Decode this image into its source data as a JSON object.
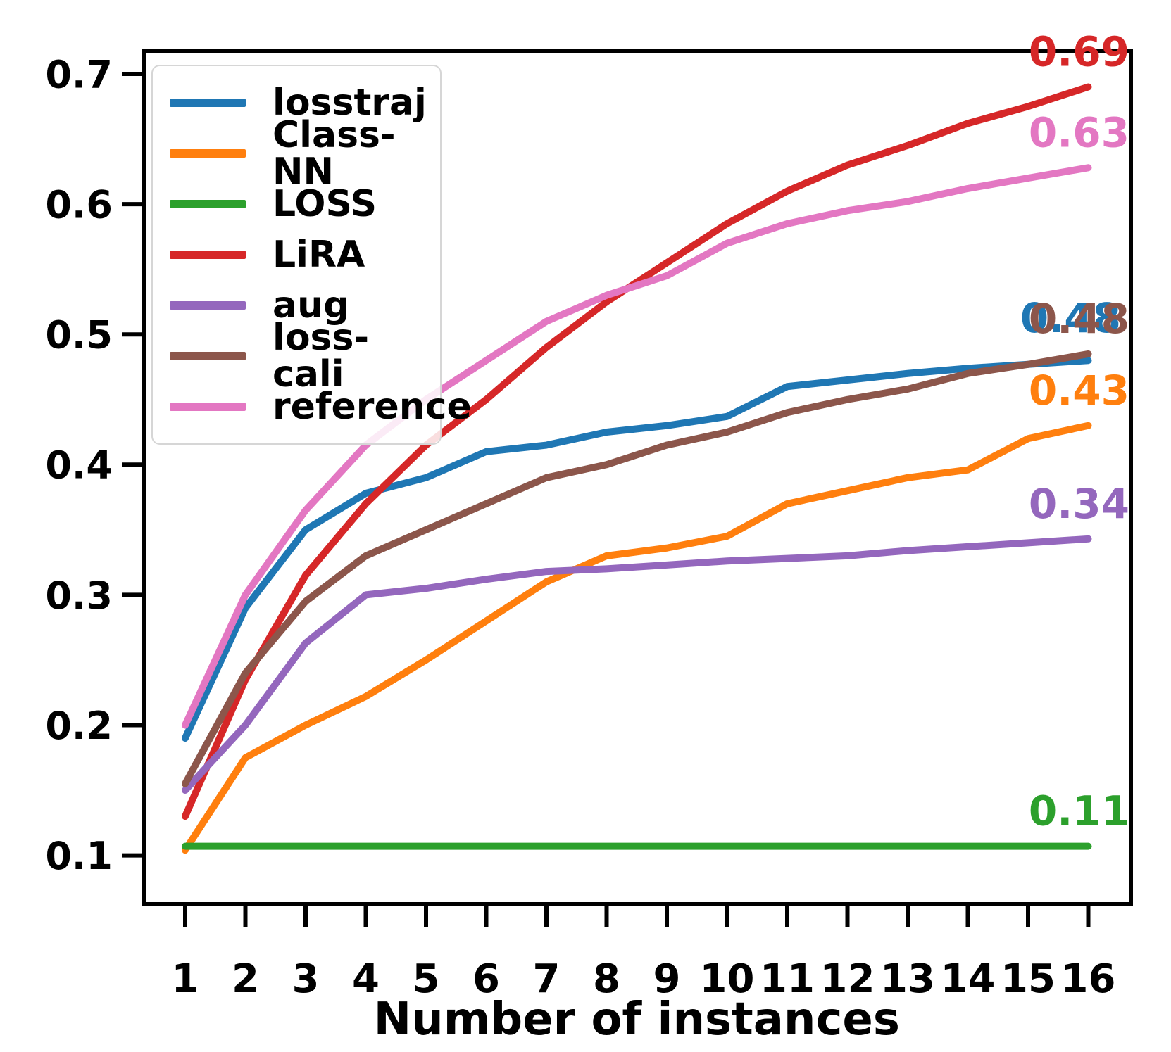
{
  "chart_data": {
    "type": "line",
    "title": "",
    "xlabel": "Number of instances",
    "ylabel": "",
    "x": [
      1,
      2,
      3,
      4,
      5,
      6,
      7,
      8,
      9,
      10,
      11,
      12,
      13,
      14,
      15,
      16
    ],
    "xtick_labels": [
      "1",
      "2",
      "3",
      "4",
      "5",
      "6",
      "7",
      "8",
      "9",
      "10",
      "11",
      "12",
      "13",
      "14",
      "15",
      "16"
    ],
    "yticks": [
      0.1,
      0.2,
      0.3,
      0.4,
      0.5,
      0.6,
      0.7
    ],
    "ytick_labels": [
      "0.1",
      "0.2",
      "0.3",
      "0.4",
      "0.5",
      "0.6",
      "0.7"
    ],
    "ylim": [
      0.06,
      0.72
    ],
    "xlim": [
      0.32,
      16.7
    ],
    "grid": false,
    "legend_position": "upper-left",
    "series": [
      {
        "name": "losstraj",
        "color": "#1f77b4",
        "end_label": "0.48",
        "values": [
          0.19,
          0.29,
          0.35,
          0.378,
          0.39,
          0.41,
          0.415,
          0.425,
          0.43,
          0.437,
          0.46,
          0.465,
          0.47,
          0.474,
          0.477,
          0.48
        ]
      },
      {
        "name": "Class-NN",
        "color": "#ff7f0e",
        "end_label": "0.43",
        "values": [
          0.104,
          0.175,
          0.2,
          0.222,
          0.25,
          0.28,
          0.31,
          0.33,
          0.336,
          0.345,
          0.37,
          0.38,
          0.39,
          0.396,
          0.42,
          0.43
        ]
      },
      {
        "name": "LOSS",
        "color": "#2ca02c",
        "end_label": "0.11",
        "values": [
          0.107,
          0.107,
          0.107,
          0.107,
          0.107,
          0.107,
          0.107,
          0.107,
          0.107,
          0.107,
          0.107,
          0.107,
          0.107,
          0.107,
          0.107,
          0.107
        ]
      },
      {
        "name": "LiRA",
        "color": "#d62728",
        "end_label": "0.69",
        "values": [
          0.13,
          0.235,
          0.315,
          0.37,
          0.415,
          0.45,
          0.49,
          0.525,
          0.555,
          0.585,
          0.61,
          0.63,
          0.645,
          0.662,
          0.675,
          0.69
        ]
      },
      {
        "name": "aug",
        "color": "#9467bd",
        "end_label": "0.34",
        "values": [
          0.15,
          0.2,
          0.263,
          0.3,
          0.305,
          0.312,
          0.318,
          0.32,
          0.323,
          0.326,
          0.328,
          0.33,
          0.334,
          0.337,
          0.34,
          0.343
        ]
      },
      {
        "name": "loss-cali",
        "color": "#8c564b",
        "end_label": "0.48",
        "values": [
          0.155,
          0.24,
          0.295,
          0.33,
          0.35,
          0.37,
          0.39,
          0.4,
          0.415,
          0.425,
          0.44,
          0.45,
          0.458,
          0.47,
          0.477,
          0.485
        ]
      },
      {
        "name": "reference",
        "color": "#e377c2",
        "end_label": "0.63",
        "values": [
          0.2,
          0.3,
          0.365,
          0.415,
          0.45,
          0.48,
          0.51,
          0.53,
          0.545,
          0.57,
          0.585,
          0.595,
          0.602,
          0.612,
          0.62,
          0.628
        ]
      }
    ]
  },
  "colors": {
    "axis": "#000000",
    "background": "#ffffff",
    "legend_border": "#d6d6d6",
    "tick_label": "#000000"
  }
}
